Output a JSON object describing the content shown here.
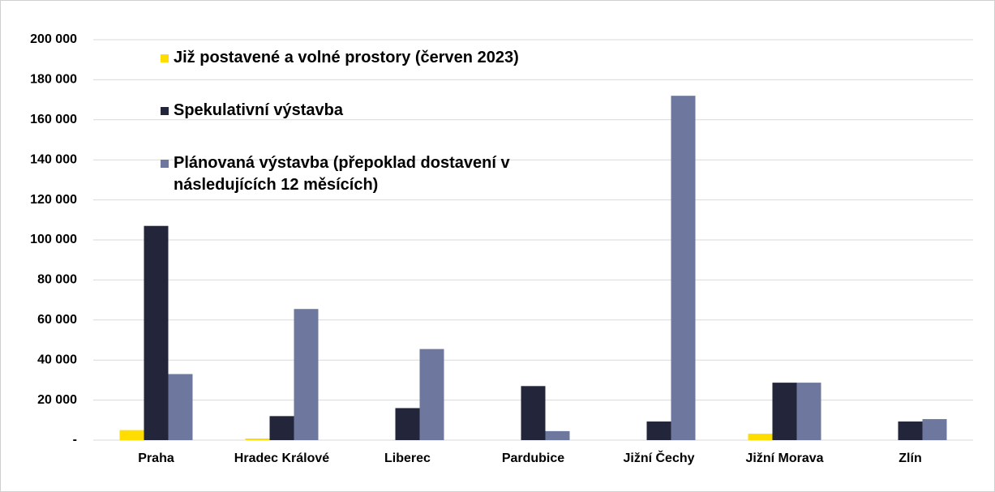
{
  "chart_data": {
    "type": "bar",
    "categories": [
      "Praha",
      "Hradec Králové",
      "Liberec",
      "Pardubice",
      "Jižní Čechy",
      "Jižní Morava",
      "Zlín"
    ],
    "series": [
      {
        "name": "Již postavené a volné prostory (červen 2023)",
        "color": "#ffdd00",
        "values": [
          5000,
          800,
          0,
          0,
          0,
          3200,
          0
        ]
      },
      {
        "name": "Spekulativní výstavba",
        "color": "#23263a",
        "values": [
          107000,
          12000,
          16000,
          27000,
          9300,
          28700,
          9300
        ]
      },
      {
        "name": "Plánovaná výstavba (přepoklad dostavení v následujících 12 měsících)",
        "color": "#6e789e",
        "values": [
          33000,
          65500,
          45500,
          4500,
          172000,
          28700,
          10500
        ]
      }
    ],
    "ylim": [
      0,
      200000
    ],
    "yticks": [
      {
        "value": 0,
        "label": "-"
      },
      {
        "value": 20000,
        "label": "20 000"
      },
      {
        "value": 40000,
        "label": "40 000"
      },
      {
        "value": 60000,
        "label": "60 000"
      },
      {
        "value": 80000,
        "label": "80 000"
      },
      {
        "value": 100000,
        "label": "100 000"
      },
      {
        "value": 120000,
        "label": "120 000"
      },
      {
        "value": 140000,
        "label": "140 000"
      },
      {
        "value": 160000,
        "label": "160 000"
      },
      {
        "value": 180000,
        "label": "180 000"
      },
      {
        "value": 200000,
        "label": "200 000"
      }
    ],
    "grid": true,
    "legend": "top-left"
  }
}
